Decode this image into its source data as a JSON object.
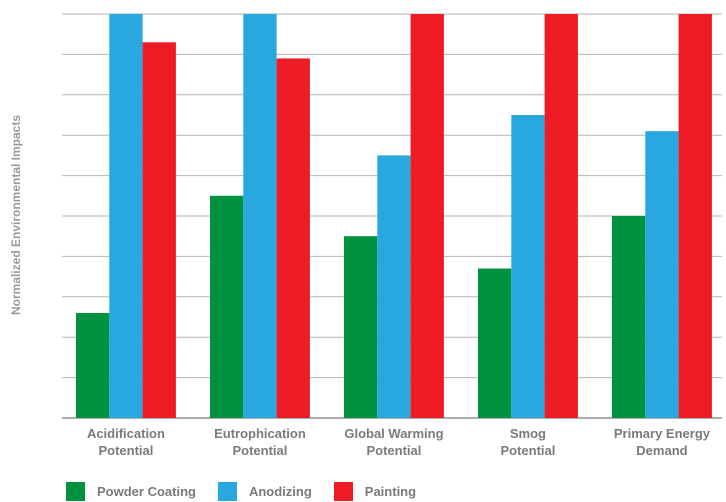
{
  "chart_data": {
    "type": "bar",
    "title": "",
    "xlabel": "",
    "ylabel": "Normalized Environmental Impacts",
    "ylim": [
      0,
      1
    ],
    "grid": true,
    "y_tick_labels_shown": false,
    "legend_position": "bottom-left",
    "categories": [
      [
        "Acidification",
        "Potential"
      ],
      [
        "Eutrophication",
        "Potential"
      ],
      [
        "Global Warming",
        "Potential"
      ],
      [
        "Smog",
        "Potential"
      ],
      [
        "Primary Energy",
        "Demand"
      ]
    ],
    "series": [
      {
        "name": "Powder Coating",
        "color": "#00923f",
        "values": [
          0.26,
          0.55,
          0.45,
          0.37,
          0.5
        ]
      },
      {
        "name": "Anodizing",
        "color": "#29a8e0",
        "values": [
          1.0,
          1.0,
          0.65,
          0.75,
          0.71
        ]
      },
      {
        "name": "Painting",
        "color": "#ed1c24",
        "values": [
          0.93,
          0.89,
          1.0,
          1.0,
          1.0
        ]
      }
    ]
  }
}
